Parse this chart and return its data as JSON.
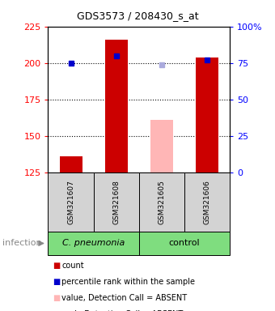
{
  "title": "GDS3573 / 208430_s_at",
  "samples": [
    "GSM321607",
    "GSM321608",
    "GSM321605",
    "GSM321606"
  ],
  "count_values": [
    136,
    216,
    null,
    204
  ],
  "count_absent_values": [
    null,
    null,
    161,
    null
  ],
  "percentile_values": [
    75,
    80,
    null,
    77
  ],
  "percentile_absent_values": [
    null,
    null,
    74,
    null
  ],
  "ylim_left": [
    125,
    225
  ],
  "ylim_right": [
    0,
    100
  ],
  "yticks_left": [
    125,
    150,
    175,
    200,
    225
  ],
  "yticks_right": [
    0,
    25,
    50,
    75,
    100
  ],
  "ytick_labels_right": [
    "0",
    "25",
    "50",
    "75",
    "100%"
  ],
  "bar_width": 0.5,
  "count_color": "#CC0000",
  "count_absent_color": "#FFB6B6",
  "percentile_color": "#0000CC",
  "percentile_absent_color": "#AAAADD",
  "group_box_color": "#D3D3D3",
  "group_green": "#7FDD7F",
  "dotted_line_values": [
    150,
    175,
    200
  ],
  "group1_name": "C. pneumonia",
  "group2_name": "control",
  "infection_label": "infection",
  "legend_labels": [
    "count",
    "percentile rank within the sample",
    "value, Detection Call = ABSENT",
    "rank, Detection Call = ABSENT"
  ],
  "legend_colors": [
    "#CC0000",
    "#0000CC",
    "#FFB6B6",
    "#AAAADD"
  ]
}
